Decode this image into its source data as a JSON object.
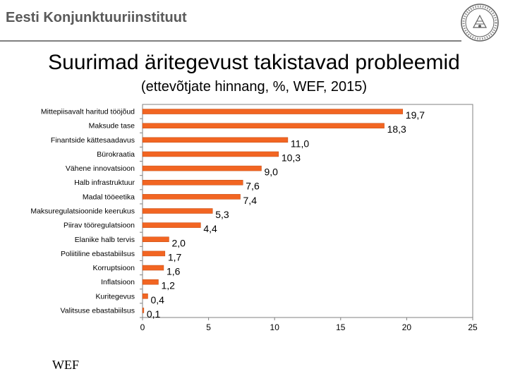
{
  "header": {
    "title": "Eesti Konjunktuuriinstituut"
  },
  "slide": {
    "title": "Suurimad äritegevust takistavad probleemid",
    "subtitle": "(ettevõtjate hinnang, %, WEF, 2015)",
    "source": "WEF"
  },
  "colors": {
    "bar": "#f26522",
    "bar_edge": "#c24a10",
    "axis": "#808080",
    "header": "#5a5a5a"
  },
  "chart_data": {
    "type": "bar",
    "orientation": "horizontal",
    "categories": [
      "Mittepiisavalt haritud tööjõud",
      "Maksude tase",
      "Finantside kättesaadavus",
      "Bürokraatia",
      "Vähene innovatsioon",
      "Halb infrastruktuur",
      "Madal tööeetika",
      "Maksuregulatsioonide keerukus",
      "Piirav tööregulatsioon",
      "Elanike halb tervis",
      "Poliitiline ebastabiilsus",
      "Korruptsioon",
      "Inflatsioon",
      "Kuritegevus",
      "Valitsuse ebastabiilsus"
    ],
    "values": [
      19.7,
      18.3,
      11.0,
      10.3,
      9.0,
      7.6,
      7.4,
      5.3,
      4.4,
      2.0,
      1.7,
      1.6,
      1.2,
      0.4,
      0.1
    ],
    "value_labels": [
      "19,7",
      "18,3",
      "11,0",
      "10,3",
      "9,0",
      "7,6",
      "7,4",
      "5,3",
      "4,4",
      "2,0",
      "1,7",
      "1,6",
      "1,2",
      "0,4",
      "0,1"
    ],
    "xticks": [
      0,
      5,
      10,
      15,
      20,
      25
    ],
    "xlim": [
      0,
      25
    ],
    "title": "",
    "xlabel": "",
    "ylabel": ""
  }
}
